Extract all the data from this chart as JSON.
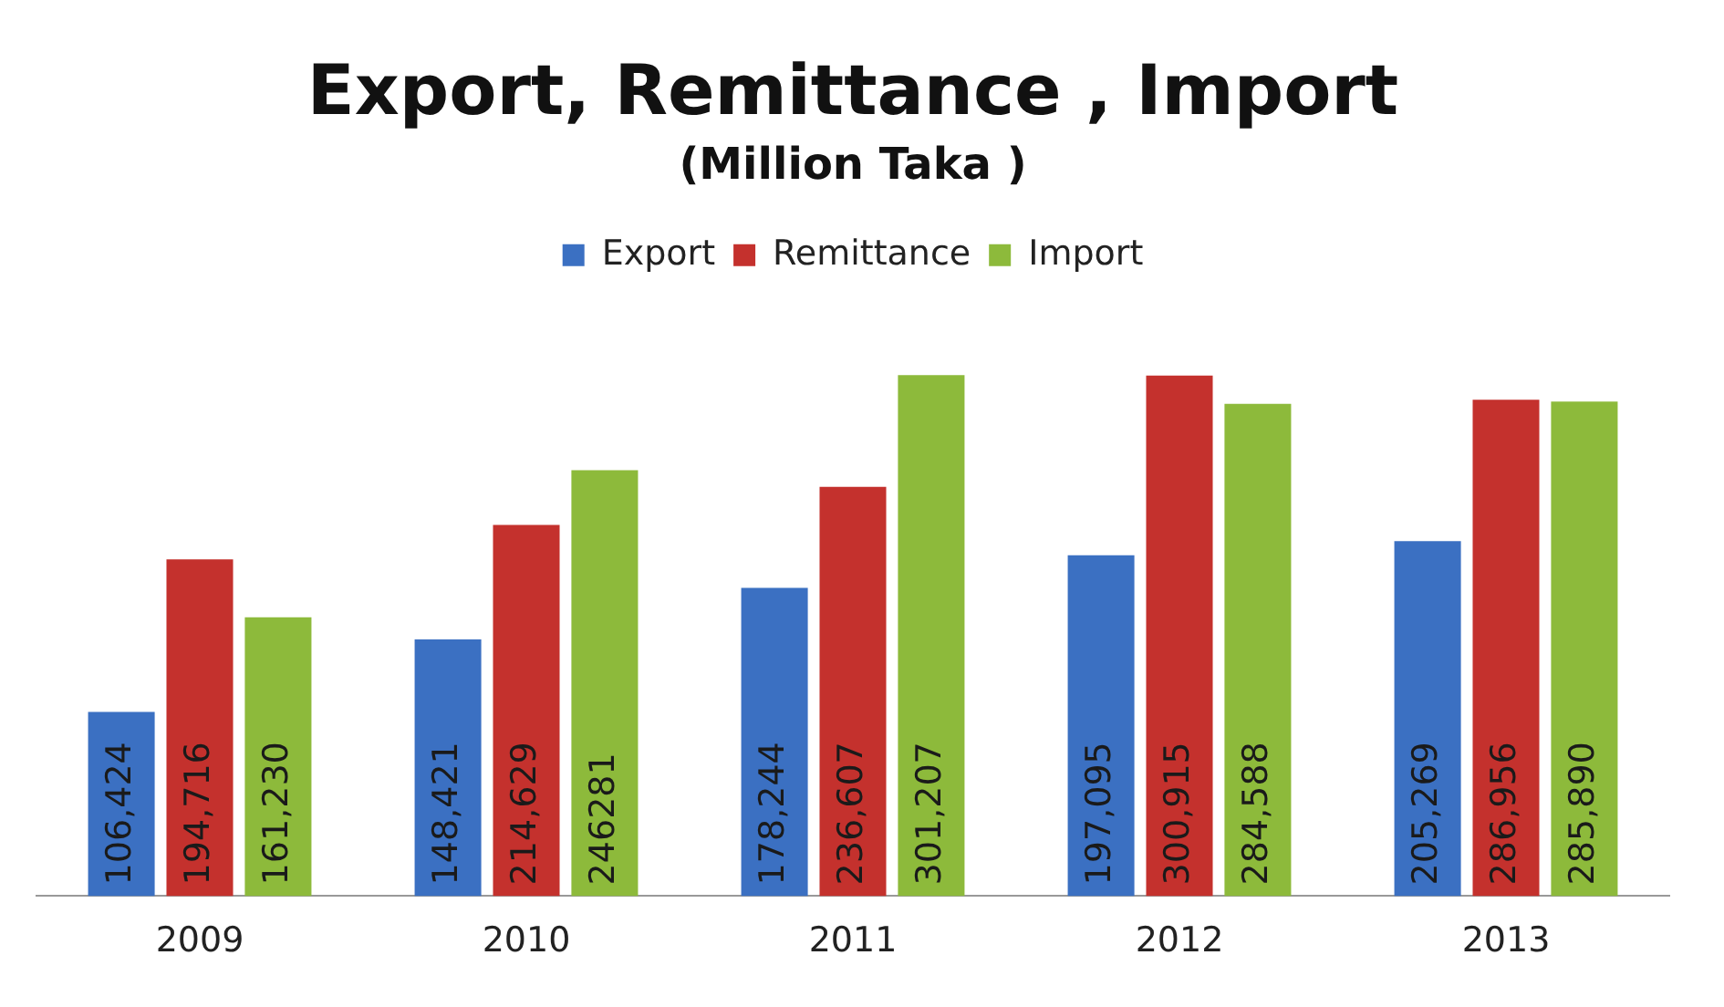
{
  "chart_data": {
    "type": "bar",
    "title": "Export, Remittance , Import",
    "subtitle": "(Million Taka )",
    "categories": [
      "2009",
      "2010",
      "2011",
      "2012",
      "2013"
    ],
    "series": [
      {
        "name": "Export",
        "color": "#3b70c2",
        "values": [
          106424,
          148421,
          178244,
          197095,
          205269
        ],
        "value_labels": [
          "106,424",
          "148,421",
          "178,244",
          "197,095",
          "205,269"
        ]
      },
      {
        "name": "Remittance",
        "color": "#c4312d",
        "values": [
          194716,
          214629,
          236607,
          300915,
          286956
        ],
        "value_labels": [
          "194,716",
          "214,629",
          "236,607",
          "300,915",
          "286,956"
        ]
      },
      {
        "name": "Import",
        "color": "#8dba3b",
        "values": [
          161230,
          246281,
          301207,
          284588,
          285890
        ],
        "value_labels": [
          "161,230",
          "246281",
          "301,207",
          "284,588",
          "285,890"
        ]
      }
    ],
    "tick_labels": "x",
    "legend": "top",
    "grid": false
  }
}
